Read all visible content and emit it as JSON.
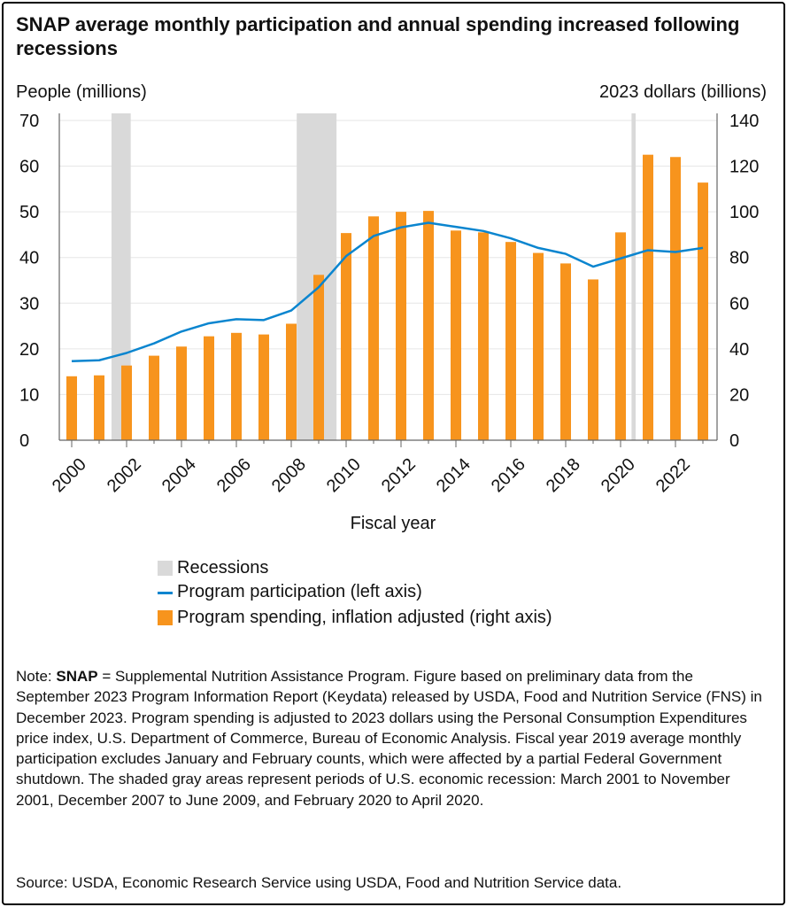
{
  "title": "SNAP average monthly participation and annual spending increased following recessions",
  "chart_data": {
    "type": "bar+line",
    "categories": [
      2000,
      2001,
      2002,
      2003,
      2004,
      2005,
      2006,
      2007,
      2008,
      2009,
      2010,
      2011,
      2012,
      2013,
      2014,
      2015,
      2016,
      2017,
      2018,
      2019,
      2020,
      2021,
      2022,
      2023
    ],
    "xtick_labels": [
      "2000",
      "2002",
      "2004",
      "2006",
      "2008",
      "2010",
      "2012",
      "2014",
      "2016",
      "2018",
      "2020",
      "2022"
    ],
    "xlabel": "Fiscal year",
    "ylabel_left": "People (millions)",
    "ylabel_right": "2023 dollars (billions)",
    "ylim_left": [
      0,
      70
    ],
    "ylim_right": [
      0,
      140
    ],
    "yticks_left": [
      0,
      10,
      20,
      30,
      40,
      50,
      60,
      70
    ],
    "yticks_right": [
      0,
      20,
      40,
      60,
      80,
      100,
      120,
      140
    ],
    "grid": true,
    "legend_placement": "bottom",
    "series": [
      {
        "name": "Program participation (left axis)",
        "type": "line",
        "axis": "left",
        "color": "#0a85cf",
        "values": [
          17.3,
          17.5,
          19.1,
          21.2,
          23.8,
          25.6,
          26.5,
          26.3,
          28.4,
          33.5,
          40.3,
          44.7,
          46.6,
          47.6,
          46.7,
          45.8,
          44.2,
          42.1,
          40.8,
          38.0,
          39.8,
          41.6,
          41.2,
          42.1
        ]
      },
      {
        "name": "Program spending, inflation adjusted (right axis)",
        "type": "bar",
        "axis": "right",
        "color": "#f7941d",
        "values": [
          28,
          28.4,
          32.7,
          37,
          41,
          45.5,
          47,
          46.3,
          51,
          72.4,
          90.7,
          98,
          100,
          100.4,
          91.8,
          91,
          86.8,
          82,
          77.4,
          70.4,
          91,
          125,
          124,
          112.8
        ]
      }
    ],
    "recessions": {
      "name": "Recessions",
      "color": "#d9d9d9",
      "spans": [
        [
          2001.45,
          2002.15
        ],
        [
          2008.2,
          2009.65
        ],
        [
          2020.4,
          2020.55
        ]
      ]
    }
  },
  "note_label": "Note: ",
  "note_bold": "SNAP",
  "note_text": " = Supplemental Nutrition Assistance Program. Figure based on preliminary data from the September 2023 Program Information Report (Keydata) released by USDA, Food and Nutrition Service (FNS) in December 2023. Program spending is adjusted to 2023 dollars using the Personal Consumption Expenditures price index, U.S. Department of Commerce, Bureau of Economic Analysis. Fiscal year 2019 average monthly participation excludes January and February counts, which were affected by a partial Federal Government shutdown. The shaded gray areas represent periods of U.S. economic recession: March 2001 to November 2001, December 2007 to June 2009, and February 2020 to April 2020.",
  "source": "Source: USDA, Economic Research Service using USDA, Food and Nutrition Service data."
}
